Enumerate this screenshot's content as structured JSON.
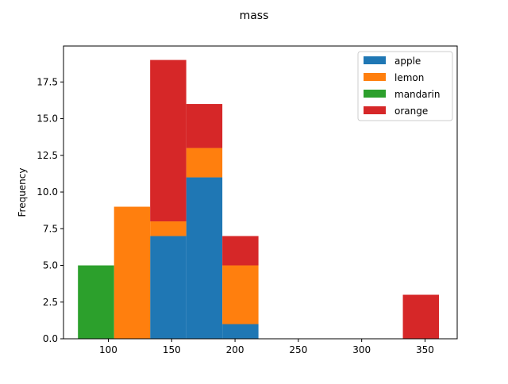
{
  "chart_data": {
    "type": "bar",
    "stacked": true,
    "title": "mass",
    "xlabel": "",
    "ylabel": "Frequency",
    "xlim": [
      64.6,
      375.4
    ],
    "ylim": [
      0,
      19.95
    ],
    "bin_edges": [
      76.0,
      104.5,
      133.0,
      161.5,
      190.0,
      218.5,
      247.0,
      275.5,
      304.0,
      332.5,
      361.0
    ],
    "xticks": [
      100,
      150,
      200,
      250,
      300,
      350
    ],
    "yticks": [
      0.0,
      2.5,
      5.0,
      7.5,
      10.0,
      12.5,
      15.0,
      17.5
    ],
    "xtick_labels": [
      "100",
      "150",
      "200",
      "250",
      "300",
      "350"
    ],
    "ytick_labels": [
      "0.0",
      "2.5",
      "5.0",
      "7.5",
      "10.0",
      "12.5",
      "15.0",
      "17.5"
    ],
    "grid": false,
    "legend_position": "top-right",
    "series": [
      {
        "name": "apple",
        "color": "#1f77b4",
        "values": [
          0,
          0,
          7,
          11,
          1,
          0,
          0,
          0,
          0,
          0
        ]
      },
      {
        "name": "lemon",
        "color": "#ff7f0e",
        "values": [
          0,
          9,
          1,
          2,
          4,
          0,
          0,
          0,
          0,
          0
        ]
      },
      {
        "name": "mandarin",
        "color": "#2ca02c",
        "values": [
          5,
          0,
          0,
          0,
          0,
          0,
          0,
          0,
          0,
          0
        ]
      },
      {
        "name": "orange",
        "color": "#d62728",
        "values": [
          0,
          0,
          11,
          3,
          2,
          0,
          0,
          0,
          0,
          3
        ]
      }
    ]
  }
}
